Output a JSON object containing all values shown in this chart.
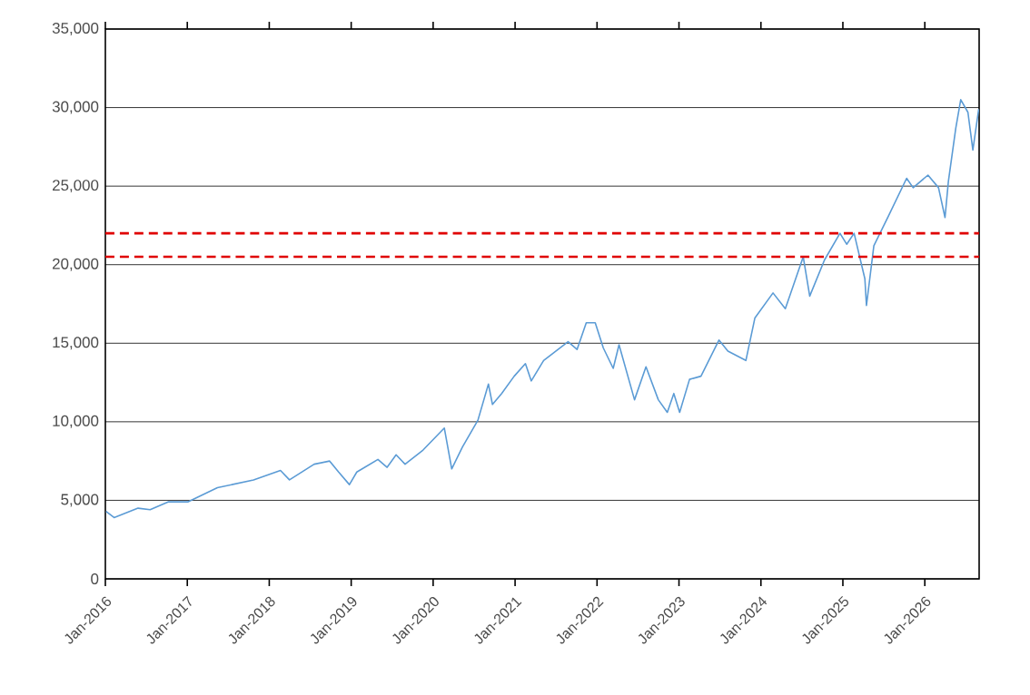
{
  "chart_data": {
    "type": "line",
    "x": [
      "2016-01-04",
      "2016-02-09",
      "2016-05-26",
      "2016-07-19",
      "2016-10-07",
      "2017-01-03",
      "2017-05-15",
      "2017-10-23",
      "2018-02-20",
      "2018-04-01",
      "2018-07-20",
      "2018-09-27",
      "2018-11-06",
      "2018-12-24",
      "2019-01-26",
      "2019-04-30",
      "2019-06-10",
      "2019-07-20",
      "2019-08-29",
      "2019-11-17",
      "2020-02-20",
      "2020-03-24",
      "2020-05-11",
      "2020-07-19",
      "2020-09-04",
      "2020-09-22",
      "2020-11-02",
      "2020-12-28",
      "2021-02-16",
      "2021-03-14",
      "2021-05-08",
      "2021-08-25",
      "2021-10-04",
      "2021-11-14",
      "2021-12-24",
      "2022-01-29",
      "2022-03-14",
      "2022-04-09",
      "2022-06-17",
      "2022-08-07",
      "2022-10-01",
      "2022-11-10",
      "2022-12-09",
      "2023-01-04",
      "2023-02-17",
      "2023-04-09",
      "2023-06-28",
      "2023-08-07",
      "2023-10-26",
      "2023-12-05",
      "2024-02-24",
      "2024-04-19",
      "2024-07-08",
      "2024-08-06",
      "2024-10-11",
      "2024-12-19",
      "2025-01-18",
      "2025-02-20",
      "2025-04-09",
      "2025-04-16",
      "2025-05-19",
      "2025-07-23",
      "2025-10-12",
      "2025-11-10",
      "2026-01-15",
      "2026-03-03",
      "2026-04-01",
      "2026-04-16",
      "2026-05-19",
      "2026-06-10",
      "2026-07-12",
      "2026-08-03",
      "2026-08-29"
    ],
    "series": [
      {
        "color": "#5b9bd5",
        "values": [
          4300,
          3900,
          4500,
          4400,
          4900,
          4900,
          5800,
          6300,
          6900,
          6300,
          7300,
          7500,
          6800,
          6000,
          6800,
          7600,
          7100,
          7900,
          7300,
          8200,
          9600,
          7000,
          8400,
          10100,
          12400,
          11100,
          11800,
          12900,
          13700,
          12600,
          13900,
          15100,
          14600,
          16300,
          16300,
          14700,
          13400,
          14900,
          11400,
          13500,
          11400,
          10600,
          11800,
          10600,
          12700,
          12900,
          15200,
          14500,
          13900,
          16600,
          18200,
          17200,
          20500,
          18000,
          20300,
          22000,
          21300,
          22000,
          19100,
          17400,
          21200,
          23100,
          25500,
          24900,
          25700,
          24900,
          23000,
          25300,
          28700,
          30500,
          29700,
          27300,
          29900
        ]
      }
    ],
    "xlim": [
      "2016-01-01",
      "2026-08-31"
    ],
    "xticks": [
      {
        "value": "2016-01-01",
        "label": "Jan-2016"
      },
      {
        "value": "2017-01-01",
        "label": "Jan-2017"
      },
      {
        "value": "2018-01-01",
        "label": "Jan-2018"
      },
      {
        "value": "2019-01-01",
        "label": "Jan-2019"
      },
      {
        "value": "2020-01-01",
        "label": "Jan-2020"
      },
      {
        "value": "2021-01-01",
        "label": "Jan-2021"
      },
      {
        "value": "2022-01-01",
        "label": "Jan-2022"
      },
      {
        "value": "2023-01-01",
        "label": "Jan-2023"
      },
      {
        "value": "2024-01-01",
        "label": "Jan-2024"
      },
      {
        "value": "2025-01-01",
        "label": "Jan-2025"
      },
      {
        "value": "2026-01-01",
        "label": "Jan-2026"
      }
    ],
    "ylim": [
      0,
      35000
    ],
    "yticks": [
      0,
      {
        "value": 5000,
        "label": "5,000"
      },
      {
        "value": 10000,
        "label": "10,000"
      },
      {
        "value": 15000,
        "label": "15,000"
      },
      {
        "value": 20000,
        "label": "20,000"
      },
      {
        "value": 25000,
        "label": "25,000"
      },
      {
        "value": 30000,
        "label": "30,000"
      },
      {
        "value": 35000,
        "label": "35,000"
      }
    ],
    "grid": "y",
    "ref_lines": [
      {
        "axis": "y",
        "value": 22000,
        "color": "#e00000",
        "line_style": "dashed"
      },
      {
        "axis": "y",
        "value": 20500,
        "color": "#e00000",
        "line_style": "dashed"
      }
    ]
  }
}
